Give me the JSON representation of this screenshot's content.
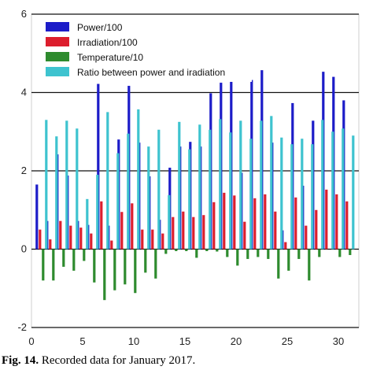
{
  "caption": {
    "label": "Fig. 14.",
    "text": "Recorded data for January 2017."
  },
  "chart_data": {
    "type": "bar",
    "xlim": [
      0,
      32
    ],
    "ylim": [
      -2,
      6
    ],
    "xticks": [
      "0",
      "5",
      "10",
      "15",
      "20",
      "25",
      "30"
    ],
    "yticks": [
      "-2",
      "0",
      "2",
      "4",
      "6"
    ],
    "grid": "horizontal",
    "legend_position": "top-left",
    "colors": [
      "#1c1cc8",
      "#dc1e2d",
      "#2e8b2e",
      "#3ec3cf"
    ],
    "categories": [
      1,
      2,
      3,
      4,
      5,
      6,
      7,
      8,
      9,
      10,
      11,
      12,
      13,
      14,
      15,
      16,
      17,
      18,
      19,
      20,
      21,
      22,
      23,
      24,
      25,
      26,
      27,
      28,
      29,
      30,
      31
    ],
    "series": [
      {
        "name": "Power/100",
        "values": [
          1.65,
          0.72,
          2.42,
          1.88,
          0.72,
          0.62,
          4.22,
          0.6,
          2.8,
          4.17,
          2.72,
          1.86,
          0.75,
          2.08,
          2.62,
          2.74,
          2.62,
          3.98,
          4.25,
          4.28,
          1.95,
          4.32,
          4.57,
          2.72,
          0.48,
          3.73,
          1.62,
          3.28,
          4.53,
          4.4,
          3.8
        ]
      },
      {
        "name": "Irradiation/100",
        "values": [
          0.5,
          0.25,
          0.72,
          0.6,
          0.55,
          0.4,
          1.22,
          0.22,
          0.95,
          1.17,
          0.5,
          0.5,
          0.4,
          0.82,
          0.96,
          0.82,
          0.87,
          1.2,
          1.44,
          1.37,
          0.7,
          1.3,
          1.4,
          0.96,
          0.18,
          1.32,
          0.6,
          1.0,
          1.52,
          1.4,
          1.22
        ]
      },
      {
        "name": "Temperature/10",
        "values": [
          -0.8,
          -0.8,
          -0.45,
          -0.55,
          -0.3,
          -0.85,
          -1.3,
          -1.05,
          -0.9,
          -1.12,
          -0.6,
          -0.75,
          -0.12,
          -0.05,
          -0.05,
          -0.22,
          -0.05,
          -0.06,
          -0.2,
          -0.42,
          -0.25,
          -0.2,
          -0.25,
          -0.75,
          -0.55,
          -0.25,
          -0.8,
          -0.2,
          0.0,
          -0.2,
          -0.15
        ]
      },
      {
        "name": "Ratio between power and iradiation",
        "values": [
          3.3,
          2.88,
          3.28,
          3.08,
          1.28,
          1.9,
          3.5,
          2.45,
          2.95,
          3.57,
          2.62,
          3.05,
          1.38,
          3.25,
          2.55,
          3.18,
          3.05,
          3.32,
          2.98,
          3.28,
          2.82,
          3.28,
          3.4,
          2.85,
          2.68,
          2.82,
          2.68,
          3.3,
          3.0,
          3.08,
          2.9
        ]
      }
    ]
  }
}
